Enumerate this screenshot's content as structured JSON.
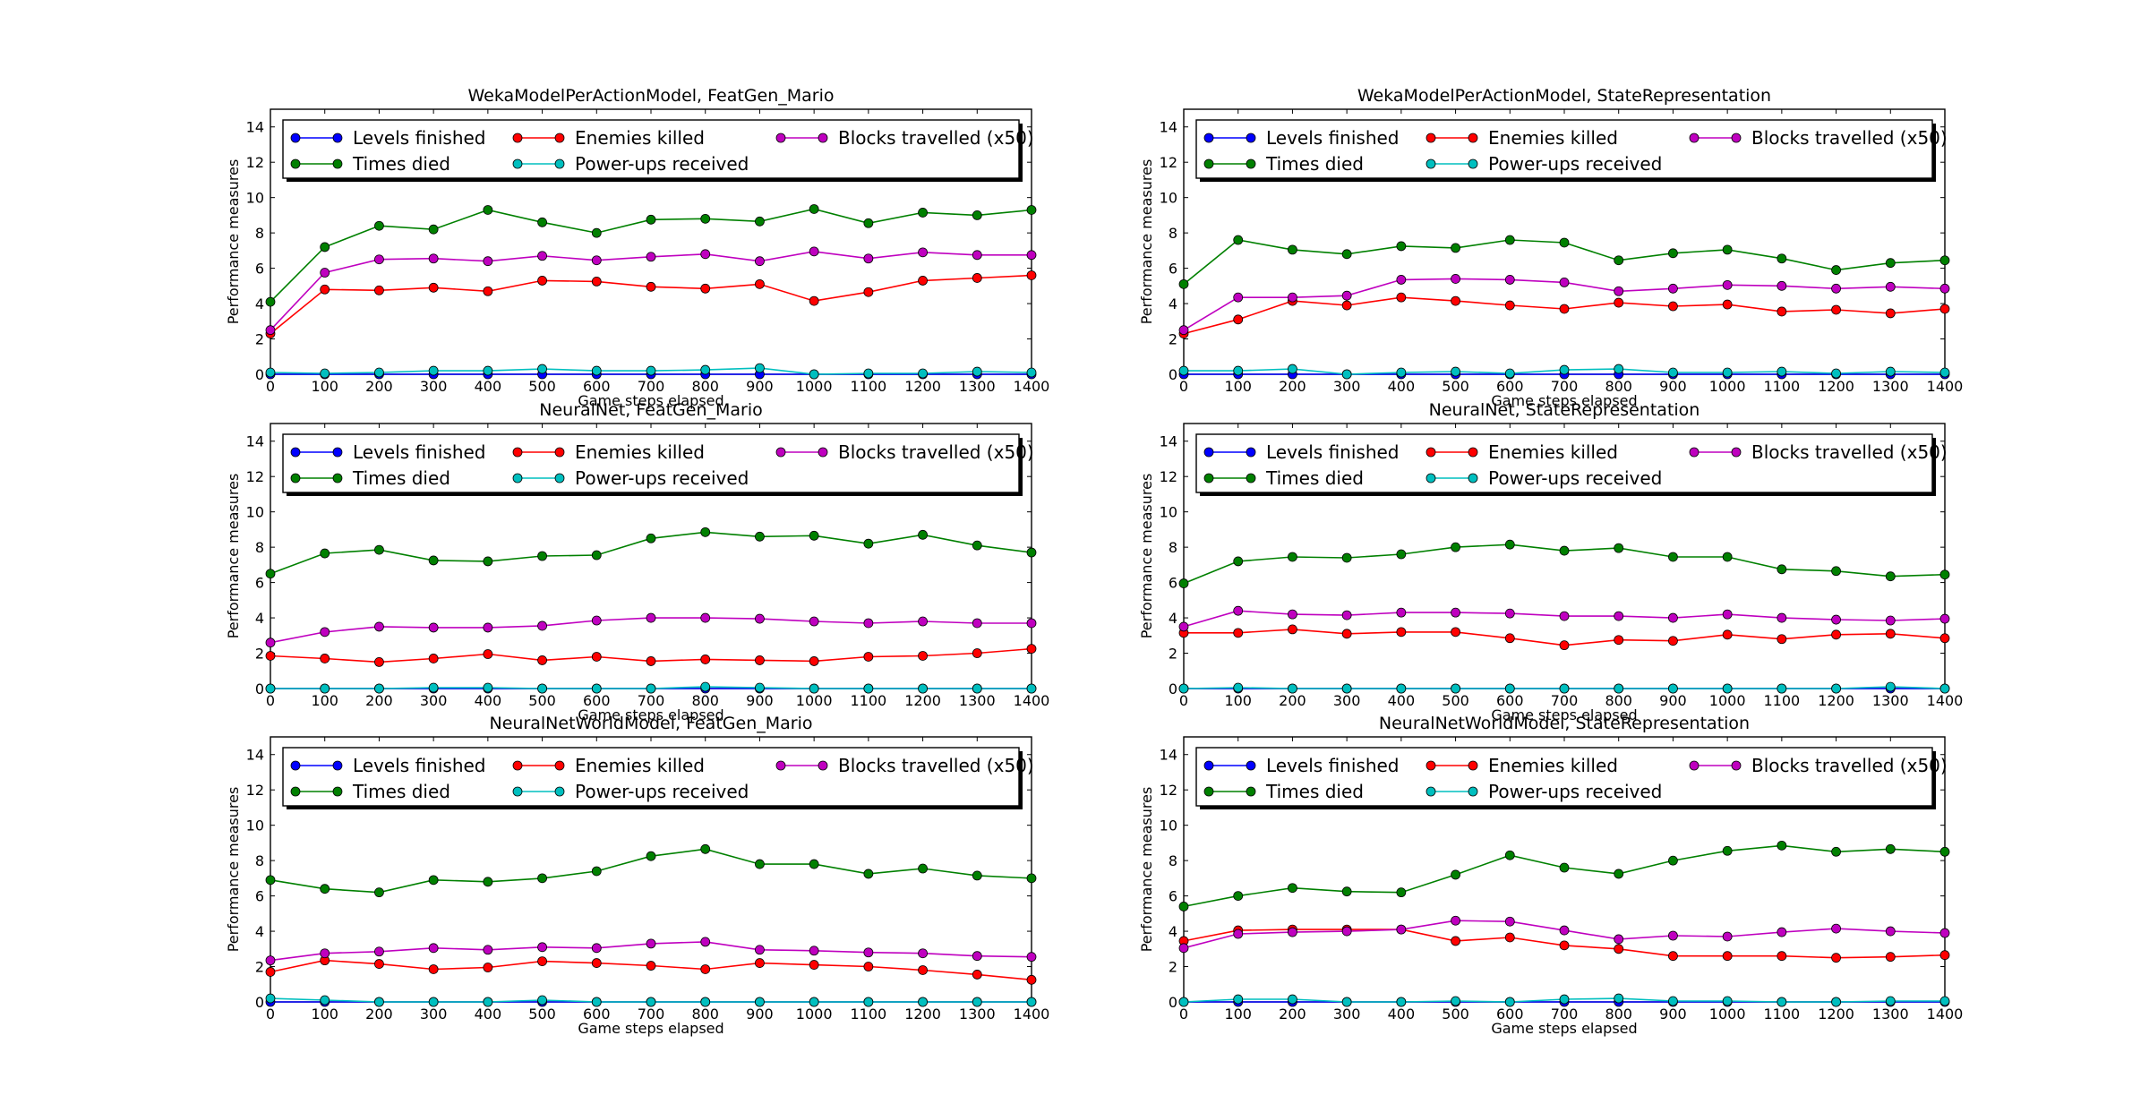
{
  "figure": {
    "layout": "3 rows x 2 columns",
    "background": "#ffffff"
  },
  "series_colors": {
    "Levels finished": "#0000ff",
    "Times died": "#008000",
    "Enemies killed": "#ff0000",
    "Power-ups received": "#00bfbf",
    "Blocks travelled (x50)": "#bf00bf"
  },
  "chart_data": [
    {
      "type": "line",
      "title": "WekaModelPerActionModel, FeatGen_Mario",
      "xlabel": "Game steps elapsed",
      "ylabel": "Performance measures",
      "xlim": [
        0,
        1400
      ],
      "ylim": [
        0,
        15
      ],
      "xticks": [
        0,
        100,
        200,
        300,
        400,
        500,
        600,
        700,
        800,
        900,
        1000,
        1100,
        1200,
        1300,
        1400
      ],
      "yticks": [
        0,
        2,
        4,
        6,
        8,
        10,
        12,
        14
      ],
      "grid": false,
      "legend": "top, 3 columns",
      "x": [
        0,
        100,
        200,
        300,
        400,
        500,
        600,
        700,
        800,
        900,
        1000,
        1100,
        1200,
        1300,
        1400
      ],
      "series": [
        {
          "name": "Levels finished",
          "values": [
            0,
            0,
            0,
            0,
            0,
            0,
            0,
            0,
            0,
            0,
            0,
            0,
            0,
            0,
            0
          ]
        },
        {
          "name": "Times died",
          "values": [
            4.1,
            7.2,
            8.4,
            8.2,
            9.3,
            8.6,
            8.0,
            8.75,
            8.8,
            8.65,
            9.35,
            8.55,
            9.15,
            9.0,
            9.3
          ]
        },
        {
          "name": "Enemies killed",
          "values": [
            2.3,
            4.8,
            4.75,
            4.9,
            4.7,
            5.3,
            5.25,
            4.95,
            4.85,
            5.1,
            4.15,
            4.65,
            5.3,
            5.45,
            5.6
          ]
        },
        {
          "name": "Power-ups received",
          "values": [
            0.1,
            0.05,
            0.1,
            0.2,
            0.2,
            0.3,
            0.2,
            0.2,
            0.25,
            0.35,
            0.0,
            0.05,
            0.05,
            0.15,
            0.1
          ]
        },
        {
          "name": "Blocks travelled (x50)",
          "values": [
            2.5,
            5.75,
            6.5,
            6.55,
            6.4,
            6.7,
            6.45,
            6.65,
            6.8,
            6.4,
            6.95,
            6.55,
            6.9,
            6.75,
            6.75
          ]
        }
      ]
    },
    {
      "type": "line",
      "title": "WekaModelPerActionModel, StateRepresentation",
      "xlabel": "Game steps elapsed",
      "ylabel": "Performance measures",
      "xlim": [
        0,
        1400
      ],
      "ylim": [
        0,
        15
      ],
      "xticks": [
        0,
        100,
        200,
        300,
        400,
        500,
        600,
        700,
        800,
        900,
        1000,
        1100,
        1200,
        1300,
        1400
      ],
      "yticks": [
        0,
        2,
        4,
        6,
        8,
        10,
        12,
        14
      ],
      "grid": false,
      "legend": "top, 3 columns",
      "x": [
        0,
        100,
        200,
        300,
        400,
        500,
        600,
        700,
        800,
        900,
        1000,
        1100,
        1200,
        1300,
        1400
      ],
      "series": [
        {
          "name": "Levels finished",
          "values": [
            0,
            0,
            0,
            0,
            0,
            0,
            0,
            0,
            0,
            0,
            0,
            0,
            0,
            0,
            0
          ]
        },
        {
          "name": "Times died",
          "values": [
            5.1,
            7.6,
            7.05,
            6.8,
            7.25,
            7.15,
            7.6,
            7.45,
            6.45,
            6.85,
            7.05,
            6.55,
            5.9,
            6.3,
            6.45
          ]
        },
        {
          "name": "Enemies killed",
          "values": [
            2.3,
            3.1,
            4.15,
            3.9,
            4.35,
            4.15,
            3.9,
            3.7,
            4.05,
            3.85,
            3.95,
            3.55,
            3.65,
            3.45,
            3.7
          ]
        },
        {
          "name": "Power-ups received",
          "values": [
            0.2,
            0.2,
            0.3,
            0.0,
            0.1,
            0.15,
            0.05,
            0.25,
            0.3,
            0.1,
            0.1,
            0.15,
            0.05,
            0.15,
            0.1
          ]
        },
        {
          "name": "Blocks travelled (x50)",
          "values": [
            2.5,
            4.35,
            4.35,
            4.45,
            5.35,
            5.4,
            5.35,
            5.2,
            4.7,
            4.85,
            5.05,
            5.0,
            4.85,
            4.95,
            4.85
          ]
        }
      ]
    },
    {
      "type": "line",
      "title": "NeuralNet, FeatGen_Mario",
      "xlabel": "Game steps elapsed",
      "ylabel": "Performance measures",
      "xlim": [
        0,
        1400
      ],
      "ylim": [
        0,
        15
      ],
      "xticks": [
        0,
        100,
        200,
        300,
        400,
        500,
        600,
        700,
        800,
        900,
        1000,
        1100,
        1200,
        1300,
        1400
      ],
      "yticks": [
        0,
        2,
        4,
        6,
        8,
        10,
        12,
        14
      ],
      "grid": false,
      "legend": "top, 3 columns",
      "x": [
        0,
        100,
        200,
        300,
        400,
        500,
        600,
        700,
        800,
        900,
        1000,
        1100,
        1200,
        1300,
        1400
      ],
      "series": [
        {
          "name": "Levels finished",
          "values": [
            0,
            0,
            0,
            0,
            0,
            0,
            0,
            0,
            0,
            0,
            0,
            0,
            0,
            0,
            0
          ]
        },
        {
          "name": "Times died",
          "values": [
            6.5,
            7.65,
            7.85,
            7.25,
            7.2,
            7.5,
            7.55,
            8.5,
            8.85,
            8.6,
            8.65,
            8.2,
            8.7,
            8.1,
            7.7
          ]
        },
        {
          "name": "Enemies killed",
          "values": [
            1.85,
            1.7,
            1.5,
            1.7,
            1.95,
            1.6,
            1.8,
            1.55,
            1.65,
            1.6,
            1.55,
            1.8,
            1.85,
            2.0,
            2.25
          ]
        },
        {
          "name": "Power-ups received",
          "values": [
            0.0,
            0.0,
            0.0,
            0.05,
            0.05,
            0.0,
            0.0,
            0.0,
            0.1,
            0.05,
            0.0,
            0.0,
            0.0,
            0.0,
            0.0
          ]
        },
        {
          "name": "Blocks travelled (x50)",
          "values": [
            2.6,
            3.2,
            3.5,
            3.45,
            3.45,
            3.55,
            3.85,
            4.0,
            4.0,
            3.95,
            3.8,
            3.7,
            3.8,
            3.7,
            3.7
          ]
        }
      ]
    },
    {
      "type": "line",
      "title": "NeuralNet, StateRepresentation",
      "xlabel": "Game steps elapsed",
      "ylabel": "Performance measures",
      "xlim": [
        0,
        1400
      ],
      "ylim": [
        0,
        15
      ],
      "xticks": [
        0,
        100,
        200,
        300,
        400,
        500,
        600,
        700,
        800,
        900,
        1000,
        1100,
        1200,
        1300,
        1400
      ],
      "yticks": [
        0,
        2,
        4,
        6,
        8,
        10,
        12,
        14
      ],
      "grid": false,
      "legend": "top, 3 columns",
      "x": [
        0,
        100,
        200,
        300,
        400,
        500,
        600,
        700,
        800,
        900,
        1000,
        1100,
        1200,
        1300,
        1400
      ],
      "series": [
        {
          "name": "Levels finished",
          "values": [
            0,
            0,
            0,
            0,
            0,
            0,
            0,
            0,
            0,
            0,
            0,
            0,
            0,
            0,
            0
          ]
        },
        {
          "name": "Times died",
          "values": [
            5.95,
            7.2,
            7.45,
            7.4,
            7.6,
            8.0,
            8.15,
            7.8,
            7.95,
            7.45,
            7.45,
            6.75,
            6.65,
            6.35,
            6.45
          ]
        },
        {
          "name": "Enemies killed",
          "values": [
            3.15,
            3.15,
            3.35,
            3.1,
            3.2,
            3.2,
            2.85,
            2.45,
            2.75,
            2.7,
            3.05,
            2.8,
            3.05,
            3.1,
            2.85
          ]
        },
        {
          "name": "Power-ups received",
          "values": [
            0.0,
            0.05,
            0.0,
            0.0,
            0.0,
            0.0,
            0.0,
            0.0,
            0.0,
            0.0,
            0.0,
            0.0,
            0.0,
            0.1,
            0.0
          ]
        },
        {
          "name": "Blocks travelled (x50)",
          "values": [
            3.5,
            4.4,
            4.2,
            4.15,
            4.3,
            4.3,
            4.25,
            4.1,
            4.1,
            4.0,
            4.2,
            4.0,
            3.9,
            3.85,
            3.95
          ]
        }
      ]
    },
    {
      "type": "line",
      "title": "NeuralNetWorldModel, FeatGen_Mario",
      "xlabel": "Game steps elapsed",
      "ylabel": "Performance measures",
      "xlim": [
        0,
        1400
      ],
      "ylim": [
        0,
        15
      ],
      "xticks": [
        0,
        100,
        200,
        300,
        400,
        500,
        600,
        700,
        800,
        900,
        1000,
        1100,
        1200,
        1300,
        1400
      ],
      "yticks": [
        0,
        2,
        4,
        6,
        8,
        10,
        12,
        14
      ],
      "grid": false,
      "legend": "top, 3 columns",
      "x": [
        0,
        100,
        200,
        300,
        400,
        500,
        600,
        700,
        800,
        900,
        1000,
        1100,
        1200,
        1300,
        1400
      ],
      "series": [
        {
          "name": "Levels finished",
          "values": [
            0,
            0,
            0,
            0,
            0,
            0,
            0,
            0,
            0,
            0,
            0,
            0,
            0,
            0,
            0
          ]
        },
        {
          "name": "Times died",
          "values": [
            6.9,
            6.4,
            6.2,
            6.9,
            6.8,
            7.0,
            7.4,
            8.25,
            8.65,
            7.8,
            7.8,
            7.25,
            7.55,
            7.15,
            7.0
          ]
        },
        {
          "name": "Enemies killed",
          "values": [
            1.7,
            2.35,
            2.15,
            1.85,
            1.95,
            2.3,
            2.2,
            2.05,
            1.85,
            2.2,
            2.1,
            2.0,
            1.8,
            1.55,
            1.25
          ]
        },
        {
          "name": "Power-ups received",
          "values": [
            0.2,
            0.1,
            0.0,
            0.0,
            0.0,
            0.1,
            0.0,
            0.0,
            0.0,
            0.0,
            0.0,
            0.0,
            0.0,
            0.0,
            0.0
          ]
        },
        {
          "name": "Blocks travelled (x50)",
          "values": [
            2.35,
            2.75,
            2.85,
            3.05,
            2.95,
            3.1,
            3.05,
            3.3,
            3.4,
            2.95,
            2.9,
            2.8,
            2.75,
            2.6,
            2.55
          ]
        }
      ]
    },
    {
      "type": "line",
      "title": "NeuralNetWorldModel, StateRepresentation",
      "xlabel": "Game steps elapsed",
      "ylabel": "Performance measures",
      "xlim": [
        0,
        1400
      ],
      "ylim": [
        0,
        15
      ],
      "xticks": [
        0,
        100,
        200,
        300,
        400,
        500,
        600,
        700,
        800,
        900,
        1000,
        1100,
        1200,
        1300,
        1400
      ],
      "yticks": [
        0,
        2,
        4,
        6,
        8,
        10,
        12,
        14
      ],
      "grid": false,
      "legend": "top, 3 columns",
      "x": [
        0,
        100,
        200,
        300,
        400,
        500,
        600,
        700,
        800,
        900,
        1000,
        1100,
        1200,
        1300,
        1400
      ],
      "series": [
        {
          "name": "Levels finished",
          "values": [
            0,
            0,
            0,
            0,
            0,
            0,
            0,
            0,
            0,
            0,
            0,
            0,
            0,
            0,
            0
          ]
        },
        {
          "name": "Times died",
          "values": [
            5.4,
            6.0,
            6.45,
            6.25,
            6.2,
            7.2,
            8.3,
            7.6,
            7.25,
            8.0,
            8.55,
            8.85,
            8.5,
            8.65,
            8.5
          ]
        },
        {
          "name": "Enemies killed",
          "values": [
            3.45,
            4.05,
            4.1,
            4.1,
            4.1,
            3.45,
            3.65,
            3.2,
            3.0,
            2.6,
            2.6,
            2.6,
            2.5,
            2.55,
            2.65
          ]
        },
        {
          "name": "Power-ups received",
          "values": [
            0.0,
            0.15,
            0.15,
            0.0,
            0.0,
            0.05,
            0.0,
            0.15,
            0.2,
            0.05,
            0.05,
            0.0,
            0.0,
            0.05,
            0.05
          ]
        },
        {
          "name": "Blocks travelled (x50)",
          "values": [
            3.05,
            3.85,
            3.95,
            4.0,
            4.1,
            4.6,
            4.55,
            4.05,
            3.55,
            3.75,
            3.7,
            3.95,
            4.15,
            4.0,
            3.9
          ]
        }
      ]
    }
  ]
}
